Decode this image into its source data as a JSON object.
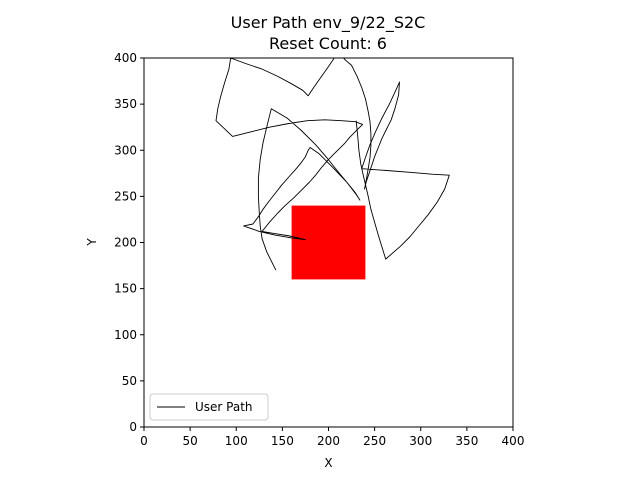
{
  "chart_data": {
    "type": "line",
    "title": "User Path env_9/22_S2C",
    "subtitle": "Reset Count: 6",
    "xlabel": "X",
    "ylabel": "Y",
    "xlim": [
      0,
      400
    ],
    "ylim": [
      0,
      400
    ],
    "xticks": [
      "0",
      "50",
      "100",
      "150",
      "200",
      "250",
      "300",
      "350",
      "400"
    ],
    "yticks": [
      "0",
      "50",
      "100",
      "150",
      "200",
      "250",
      "300",
      "350",
      "400"
    ],
    "grid": false,
    "legend_position": "lower-left",
    "series": [
      {
        "name": "User Path",
        "color": "#000000",
        "points": [
          [
            143,
            170
          ],
          [
            139,
            178
          ],
          [
            133,
            190
          ],
          [
            128,
            204
          ],
          [
            126,
            218
          ],
          [
            125,
            232
          ],
          [
            124,
            250
          ],
          [
            124,
            270
          ],
          [
            126,
            290
          ],
          [
            129,
            308
          ],
          [
            133,
            325
          ],
          [
            138,
            345
          ],
          [
            155,
            335
          ],
          [
            170,
            322
          ],
          [
            186,
            306
          ],
          [
            199,
            291
          ],
          [
            211,
            276
          ],
          [
            221,
            264
          ],
          [
            229,
            254
          ],
          [
            234,
            246
          ],
          [
            230,
            252
          ],
          [
            220,
            265
          ],
          [
            206,
            280
          ],
          [
            190,
            296
          ],
          [
            180,
            303
          ],
          [
            178,
            300
          ],
          [
            175,
            293
          ],
          [
            170,
            286
          ],
          [
            165,
            280
          ],
          [
            157,
            271
          ],
          [
            149,
            262
          ],
          [
            142,
            253
          ],
          [
            135,
            244
          ],
          [
            129,
            236
          ],
          [
            124,
            228
          ],
          [
            118,
            220
          ],
          [
            108,
            218
          ],
          [
            125,
            212
          ],
          [
            142,
            208
          ],
          [
            160,
            205
          ],
          [
            175,
            203
          ],
          [
            158,
            207
          ],
          [
            140,
            210
          ],
          [
            128,
            212
          ],
          [
            136,
            222
          ],
          [
            145,
            232
          ],
          [
            153,
            240
          ],
          [
            162,
            248
          ],
          [
            171,
            257
          ],
          [
            179,
            265
          ],
          [
            186,
            273
          ],
          [
            193,
            282
          ],
          [
            199,
            289
          ],
          [
            206,
            296
          ],
          [
            212,
            302
          ],
          [
            218,
            308
          ],
          [
            223,
            314
          ],
          [
            228,
            319
          ],
          [
            233,
            324
          ],
          [
            237,
            328
          ],
          [
            229,
            331
          ],
          [
            214,
            332
          ],
          [
            196,
            333
          ],
          [
            177,
            332
          ],
          [
            157,
            329
          ],
          [
            136,
            325
          ],
          [
            116,
            320
          ],
          [
            96,
            315
          ],
          [
            78,
            332
          ],
          [
            80,
            345
          ],
          [
            83,
            358
          ],
          [
            87,
            372
          ],
          [
            92,
            388
          ],
          [
            94,
            400
          ],
          [
            110,
            394
          ],
          [
            128,
            388
          ],
          [
            145,
            380
          ],
          [
            160,
            372
          ],
          [
            172,
            365
          ],
          [
            178,
            359
          ],
          [
            184,
            368
          ],
          [
            191,
            378
          ],
          [
            198,
            388
          ],
          [
            205,
            398
          ],
          [
            212,
            410
          ],
          [
            214,
            403
          ],
          [
            218,
            398
          ],
          [
            225,
            392
          ],
          [
            231,
            380
          ],
          [
            236,
            368
          ],
          [
            240,
            356
          ],
          [
            243,
            342
          ],
          [
            245,
            331
          ],
          [
            246,
            318
          ],
          [
            246,
            305
          ],
          [
            245,
            292
          ],
          [
            243,
            280
          ],
          [
            241,
            268
          ],
          [
            239,
            258
          ],
          [
            241,
            266
          ],
          [
            244,
            275
          ],
          [
            247,
            284
          ],
          [
            250,
            293
          ],
          [
            254,
            303
          ],
          [
            258,
            313
          ],
          [
            263,
            323
          ],
          [
            268,
            333
          ],
          [
            272,
            345
          ],
          [
            276,
            360
          ],
          [
            277,
            374
          ],
          [
            273,
            365
          ],
          [
            266,
            350
          ],
          [
            258,
            335
          ],
          [
            251,
            320
          ],
          [
            245,
            306
          ],
          [
            240,
            292
          ],
          [
            236,
            280
          ],
          [
            263,
            278
          ],
          [
            290,
            276
          ],
          [
            312,
            274
          ],
          [
            331,
            273
          ],
          [
            326,
            258
          ],
          [
            318,
            244
          ],
          [
            308,
            230
          ],
          [
            298,
            218
          ],
          [
            288,
            206
          ],
          [
            278,
            196
          ],
          [
            262,
            182
          ],
          [
            258,
            195
          ],
          [
            254,
            208
          ],
          [
            250,
            222
          ],
          [
            246,
            236
          ],
          [
            243,
            250
          ],
          [
            240,
            263
          ],
          [
            237,
            276
          ],
          [
            235,
            285
          ],
          [
            233,
            300
          ],
          [
            232,
            312
          ],
          [
            231,
            322
          ],
          [
            230,
            332
          ]
        ]
      }
    ],
    "rectangle": {
      "x": 160,
      "y": 160,
      "width": 80,
      "height": 80,
      "color": "#ff0000"
    },
    "legend": {
      "entries": [
        "User Path"
      ]
    }
  }
}
